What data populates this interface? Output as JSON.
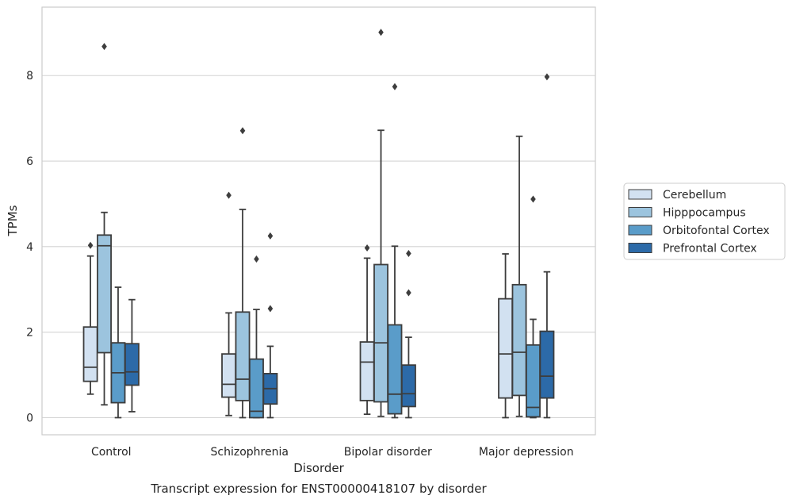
{
  "chart_data": {
    "type": "box",
    "xlabel": "Disorder",
    "ylabel": "TPMs",
    "caption": "Transcript expression for ENST00000418107 by disorder",
    "ylim": [
      -0.4,
      9.6
    ],
    "yticks": [
      "0",
      "2",
      "4",
      "6",
      "8"
    ],
    "grid": "horizontal",
    "legend_position": "right",
    "categories": [
      "Control",
      "Schizophrenia",
      "Bipolar disorder",
      "Major depression"
    ],
    "series": [
      {
        "name": "Cerebellum",
        "color": "#d2e1f1",
        "boxes": [
          {
            "whisker_low": 0.55,
            "q1": 0.85,
            "median": 1.18,
            "q3": 2.12,
            "whisker_high": 3.78,
            "outliers": [
              4.03
            ]
          },
          {
            "whisker_low": 0.05,
            "q1": 0.48,
            "median": 0.78,
            "q3": 1.49,
            "whisker_high": 2.45,
            "outliers": [
              5.2
            ]
          },
          {
            "whisker_low": 0.08,
            "q1": 0.4,
            "median": 1.3,
            "q3": 1.77,
            "whisker_high": 3.73,
            "outliers": [
              3.97
            ]
          },
          {
            "whisker_low": 0.0,
            "q1": 0.46,
            "median": 1.49,
            "q3": 2.78,
            "whisker_high": 3.83,
            "outliers": []
          }
        ]
      },
      {
        "name": "Hipppocampus",
        "color": "#9cc4de",
        "boxes": [
          {
            "whisker_low": 0.3,
            "q1": 1.52,
            "median": 4.02,
            "q3": 4.27,
            "whisker_high": 4.8,
            "outliers": [
              8.68
            ]
          },
          {
            "whisker_low": 0.0,
            "q1": 0.4,
            "median": 0.9,
            "q3": 2.47,
            "whisker_high": 4.87,
            "outliers": [
              6.71
            ]
          },
          {
            "whisker_low": 0.03,
            "q1": 0.37,
            "median": 1.75,
            "q3": 3.58,
            "whisker_high": 6.72,
            "outliers": [
              9.01
            ]
          },
          {
            "whisker_low": 0.03,
            "q1": 0.52,
            "median": 1.53,
            "q3": 3.11,
            "whisker_high": 6.58,
            "outliers": []
          }
        ]
      },
      {
        "name": "Orbitofontal Cortex",
        "color": "#5a9cc9",
        "boxes": [
          {
            "whisker_low": 0.0,
            "q1": 0.35,
            "median": 1.05,
            "q3": 1.75,
            "whisker_high": 3.05,
            "outliers": []
          },
          {
            "whisker_low": 0.0,
            "q1": 0.0,
            "median": 0.15,
            "q3": 1.37,
            "whisker_high": 2.53,
            "outliers": [
              3.71
            ]
          },
          {
            "whisker_low": 0.0,
            "q1": 0.09,
            "median": 0.55,
            "q3": 2.17,
            "whisker_high": 4.01,
            "outliers": [
              7.74
            ]
          },
          {
            "whisker_low": 0.0,
            "q1": 0.02,
            "median": 0.24,
            "q3": 1.7,
            "whisker_high": 2.3,
            "outliers": [
              5.11
            ]
          }
        ]
      },
      {
        "name": "Prefrontal Cortex",
        "color": "#2c6aa8",
        "boxes": [
          {
            "whisker_low": 0.14,
            "q1": 0.76,
            "median": 1.07,
            "q3": 1.73,
            "whisker_high": 2.76,
            "outliers": []
          },
          {
            "whisker_low": 0.0,
            "q1": 0.32,
            "median": 0.68,
            "q3": 1.03,
            "whisker_high": 1.67,
            "outliers": [
              4.25,
              2.55
            ]
          },
          {
            "whisker_low": 0.0,
            "q1": 0.26,
            "median": 0.56,
            "q3": 1.23,
            "whisker_high": 1.88,
            "outliers": [
              3.84,
              2.92
            ]
          },
          {
            "whisker_low": 0.0,
            "q1": 0.46,
            "median": 0.97,
            "q3": 2.02,
            "whisker_high": 3.41,
            "outliers": [
              7.97
            ]
          }
        ]
      }
    ]
  }
}
